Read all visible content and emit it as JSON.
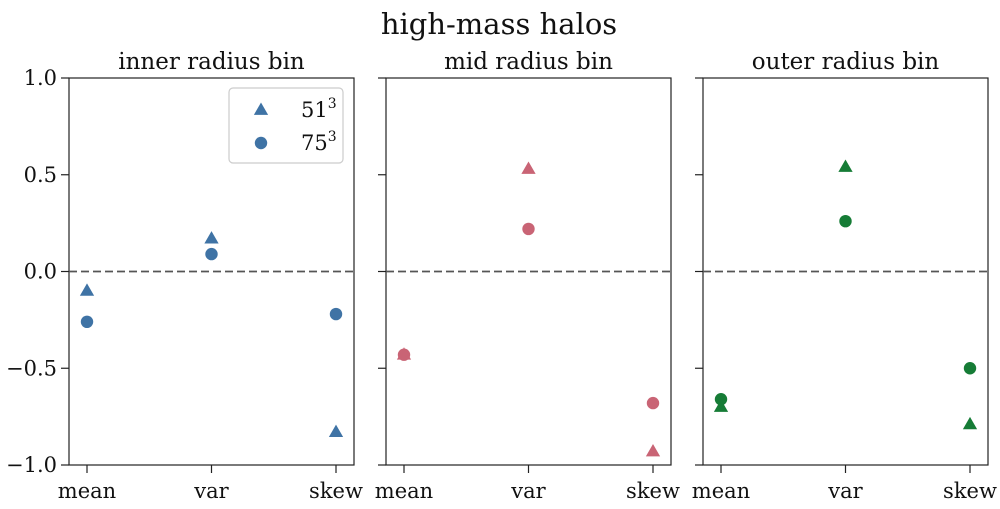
{
  "figure": {
    "title": "high-mass halos"
  },
  "legend": {
    "entries": [
      {
        "base": "51",
        "exp": "3",
        "marker": "triangle"
      },
      {
        "base": "75",
        "exp": "3",
        "marker": "circle"
      }
    ]
  },
  "chart_data": [
    {
      "type": "scatter",
      "title": "inner radius bin",
      "categories": [
        "mean",
        "var",
        "skew"
      ],
      "ylim": [
        -1.0,
        1.0
      ],
      "yticks": [
        "1.0",
        "0.5",
        "0.0",
        "−0.5",
        "−1.0"
      ],
      "reference_line": 0.0,
      "color": "#3f73a5",
      "series": [
        {
          "name": "51^3",
          "marker": "triangle",
          "values": [
            -0.1,
            0.17,
            -0.83
          ]
        },
        {
          "name": "75^3",
          "marker": "circle",
          "values": [
            -0.26,
            0.09,
            -0.22
          ]
        }
      ]
    },
    {
      "type": "scatter",
      "title": "mid radius bin",
      "categories": [
        "mean",
        "var",
        "skew"
      ],
      "ylim": [
        -1.0,
        1.0
      ],
      "reference_line": 0.0,
      "color": "#c96475",
      "series": [
        {
          "name": "51^3",
          "marker": "triangle",
          "values": [
            -0.43,
            0.53,
            -0.93
          ]
        },
        {
          "name": "75^3",
          "marker": "circle",
          "values": [
            -0.43,
            0.22,
            -0.68
          ]
        }
      ]
    },
    {
      "type": "scatter",
      "title": "outer radius bin",
      "categories": [
        "mean",
        "var",
        "skew"
      ],
      "ylim": [
        -1.0,
        1.0
      ],
      "reference_line": 0.0,
      "color": "#167c36",
      "series": [
        {
          "name": "51^3",
          "marker": "triangle",
          "values": [
            -0.7,
            0.54,
            -0.79
          ]
        },
        {
          "name": "75^3",
          "marker": "circle",
          "values": [
            -0.66,
            0.26,
            -0.5
          ]
        }
      ]
    }
  ]
}
